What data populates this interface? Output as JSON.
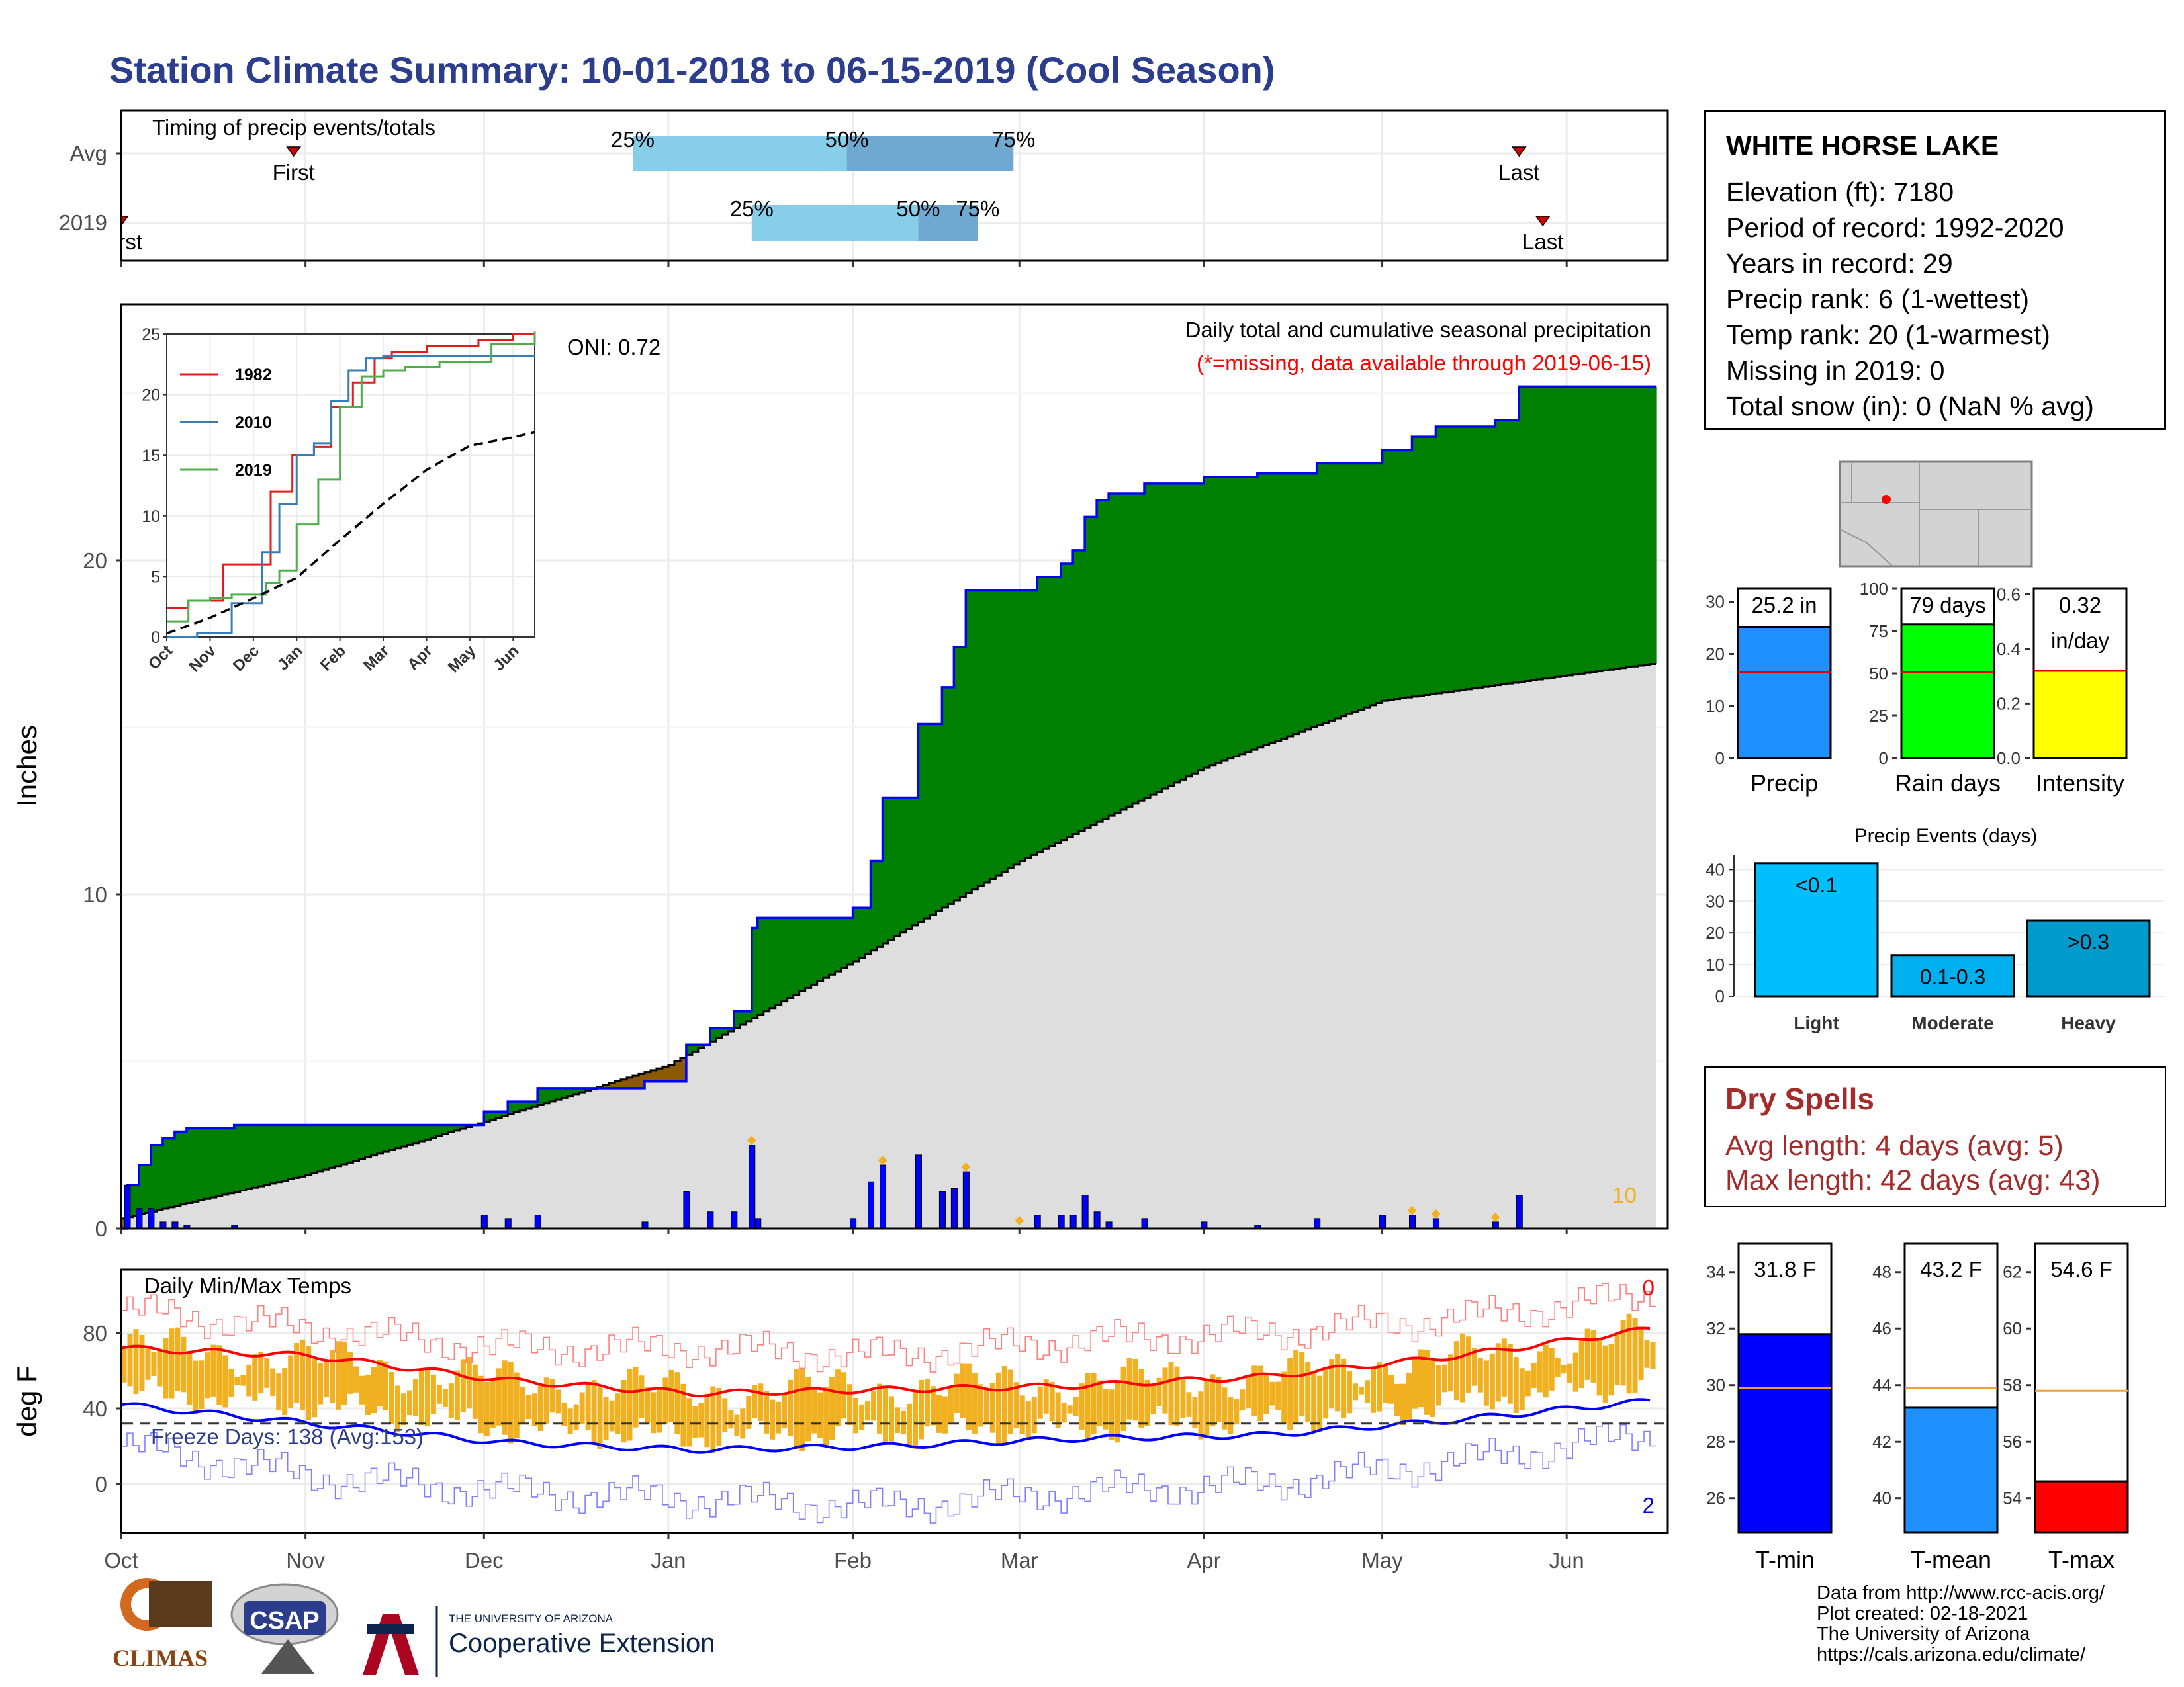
{
  "title": "Station Climate Summary: 10-01-2018 to 06-15-2019 (Cool Season)",
  "colors": {
    "title": "#2b3d8c",
    "green": "#008000",
    "brown": "#8b5a00",
    "grey": "#dedede",
    "blue": "#0000ff",
    "red": "#ff0000",
    "orange": "#f0b020",
    "light_blue": "#87ceeb",
    "steel_blue": "#6fa8d0"
  },
  "timing": {
    "title": "Timing of precip events/totals",
    "rows": [
      {
        "label": "Avg",
        "first": "First",
        "last": "Last",
        "p25": "25%",
        "p50": "50%",
        "p75": "75%",
        "first_date": "2018-10-30",
        "last_date": "2019-05-24",
        "d25": "2018-12-26",
        "d50": "2019-01-31",
        "d75": "2019-02-28"
      },
      {
        "label": "2019",
        "first": "First",
        "last": "Last",
        "p25": "25%",
        "p50": "50%",
        "p75": "75%",
        "first_date": "2018-10-01",
        "last_date": "2019-05-28",
        "d25": "2019-01-15",
        "d50": "2019-02-12",
        "d75": "2019-02-22"
      }
    ]
  },
  "main": {
    "ylabel": "Inches",
    "subtitle": "Daily total and cumulative seasonal precipitation",
    "missing_note": "(*=missing, data available through 2019-06-15)",
    "oni": "ONI: 0.72",
    "count_label": "10",
    "y_ticks": [
      "0",
      "10",
      "20"
    ]
  },
  "months": [
    "Oct",
    "Nov",
    "Dec",
    "Jan",
    "Feb",
    "Mar",
    "Apr",
    "May",
    "Jun"
  ],
  "inset": {
    "y_ticks": [
      "0",
      "5",
      "10",
      "15",
      "20",
      "25"
    ],
    "x_ticks": [
      "Oct",
      "Nov",
      "Dec",
      "Jan",
      "Feb",
      "Mar",
      "Apr",
      "May",
      "Jun"
    ],
    "legend": [
      "1982",
      "2010",
      "2019"
    ],
    "legend_colors": [
      "#e41a1c",
      "#377eb8",
      "#4daf4a"
    ]
  },
  "temps": {
    "title": "Daily Min/Max Temps",
    "ylabel": "deg F",
    "y_ticks": [
      "0",
      "40",
      "80"
    ],
    "freeze_label": "Freeze Days: 138 (Avg:153)",
    "max_count": "0",
    "min_count": "2"
  },
  "station": {
    "name": "WHITE HORSE LAKE",
    "lines": [
      "Elevation (ft): 7180",
      "Period of record: 1992-2020",
      "Years in record: 29",
      "Precip rank: 6 (1-wettest)",
      "Temp rank: 20 (1-warmest)",
      "Missing in 2019: 0",
      "Total snow (in): 0 (NaN % avg)"
    ]
  },
  "summary_bars": [
    {
      "name": "Precip",
      "label": "25.2 in",
      "value": 25.2,
      "avg": 16.5,
      "ymax": 32.5,
      "ticks": [
        "0",
        "10",
        "20",
        "30"
      ],
      "tick_vals": [
        0,
        10,
        20,
        30
      ],
      "color": "#1e90ff"
    },
    {
      "name": "Rain days",
      "label": "79 days",
      "value": 79,
      "avg": 51,
      "ymax": 100,
      "ticks": [
        "0",
        "25",
        "50",
        "75",
        "100"
      ],
      "tick_vals": [
        0,
        25,
        50,
        75,
        100
      ],
      "color": "#00ff00"
    },
    {
      "name": "Intensity",
      "label": "0.32",
      "label2": "in/day",
      "value": 0.32,
      "avg": 0.32,
      "ymax": 0.62,
      "ticks": [
        "0.0",
        "0.2",
        "0.4",
        "0.6"
      ],
      "tick_vals": [
        0,
        0.2,
        0.4,
        0.6
      ],
      "color": "#ffff00"
    }
  ],
  "events": {
    "title": "Precip Events (days)",
    "ticks": [
      "0",
      "10",
      "20",
      "30",
      "40"
    ],
    "bars": [
      {
        "name": "Light",
        "label": "<0.1",
        "value": 42,
        "color": "#00bfff"
      },
      {
        "name": "Moderate",
        "label": "0.1-0.3",
        "value": 13,
        "color": "#00b0ee"
      },
      {
        "name": "Heavy",
        "label": ">0.3",
        "value": 24,
        "color": "#009acd"
      }
    ]
  },
  "dry_spells": {
    "title": "Dry Spells",
    "avg": "Avg length: 4 days (avg: 5)",
    "max": "Max length: 42 days (avg: 43)"
  },
  "temp_bars": [
    {
      "name": "T-min",
      "label": "31.8 F",
      "value": 31.8,
      "avg": 29.9,
      "ymin": 24.8,
      "ymax": 35.0,
      "ticks": [
        "26",
        "28",
        "30",
        "32",
        "34"
      ],
      "tick_vals": [
        26,
        28,
        30,
        32,
        34
      ],
      "color": "#0000ff"
    },
    {
      "name": "T-mean",
      "label": "43.2 F",
      "value": 43.2,
      "avg": 43.9,
      "ymin": 38.8,
      "ymax": 49.0,
      "ticks": [
        "40",
        "42",
        "44",
        "46",
        "48"
      ],
      "tick_vals": [
        40,
        42,
        44,
        46,
        48
      ],
      "color": "#1e90ff"
    },
    {
      "name": "T-max",
      "label": "54.6 F",
      "value": 54.6,
      "avg": 57.8,
      "ymin": 52.8,
      "ymax": 63.0,
      "ticks": [
        "54",
        "56",
        "58",
        "60",
        "62"
      ],
      "tick_vals": [
        54,
        56,
        58,
        60,
        62
      ],
      "color": "#ff0000"
    }
  ],
  "footer": [
    "Data from http://www.rcc-acis.org/",
    "Plot created: 02-18-2021",
    "The University of Arizona",
    "https://cals.arizona.edu/climate/"
  ],
  "logos": {
    "climas": "CLIMAS",
    "csap": "CSAP",
    "ua_small": "THE UNIVERSITY OF ARIZONA",
    "ua_big": "Cooperative Extension"
  },
  "chart_data": [
    {
      "type": "area",
      "title": "Daily total and cumulative seasonal precipitation",
      "ylabel": "Inches",
      "x_range": [
        "2018-10-01",
        "2019-06-15"
      ],
      "ylim": [
        0,
        25.5
      ],
      "series": [
        {
          "name": "2019",
          "x": [
            "2018-10-01",
            "2018-10-02",
            "2018-10-04",
            "2018-10-06",
            "2018-10-08",
            "2018-10-10",
            "2018-10-12",
            "2018-10-20",
            "2018-11-28",
            "2018-12-01",
            "2018-12-05",
            "2018-12-10",
            "2018-12-28",
            "2019-01-04",
            "2019-01-08",
            "2019-01-12",
            "2019-01-15",
            "2019-01-16",
            "2019-01-20",
            "2019-02-01",
            "2019-02-04",
            "2019-02-06",
            "2019-02-12",
            "2019-02-16",
            "2019-02-18",
            "2019-02-20",
            "2019-02-22",
            "2019-03-04",
            "2019-03-08",
            "2019-03-10",
            "2019-03-12",
            "2019-03-14",
            "2019-03-16",
            "2019-03-22",
            "2019-04-01",
            "2019-04-10",
            "2019-04-20",
            "2019-05-01",
            "2019-05-06",
            "2019-05-10",
            "2019-05-20",
            "2019-05-24",
            "2019-06-15"
          ],
          "y": [
            0,
            1.3,
            1.9,
            2.5,
            2.7,
            2.9,
            3.0,
            3.1,
            3.1,
            3.5,
            3.8,
            4.2,
            4.4,
            5.5,
            6.0,
            6.5,
            9.0,
            9.3,
            9.3,
            9.6,
            11.0,
            12.9,
            15.1,
            16.2,
            17.4,
            19.1,
            19.1,
            19.5,
            19.9,
            20.3,
            21.3,
            21.8,
            22.0,
            22.3,
            22.5,
            22.6,
            22.9,
            23.3,
            23.7,
            24.0,
            24.2,
            25.2,
            25.2
          ]
        },
        {
          "name": "Avg",
          "x": [
            "2018-10-01",
            "2018-11-01",
            "2018-12-01",
            "2019-01-01",
            "2019-02-01",
            "2019-03-01",
            "2019-04-01",
            "2019-05-01",
            "2019-06-15"
          ],
          "y": [
            0.3,
            1.6,
            3.2,
            4.9,
            8.0,
            11.0,
            13.8,
            15.8,
            16.9
          ]
        }
      ],
      "daily_marks_with_flags": [
        "2019-01-15",
        "2019-02-06",
        "2019-02-20",
        "2019-03-01",
        "2019-05-06",
        "2019-05-10",
        "2019-05-20"
      ]
    },
    {
      "type": "line",
      "title": "",
      "ylim": [
        0,
        25
      ],
      "x_ticks": [
        "Oct",
        "Nov",
        "Dec",
        "Jan",
        "Feb",
        "Mar",
        "Apr",
        "May",
        "Jun"
      ],
      "series": [
        {
          "name": "1982",
          "x": [
            0,
            0.5,
            1.3,
            2.0,
            2.4,
            2.9,
            3.4,
            3.8,
            4.3,
            4.8,
            5.2,
            6.0,
            7.2,
            8.0,
            8.5
          ],
          "y": [
            2.4,
            3.0,
            6.0,
            6.0,
            12.0,
            15.0,
            15.7,
            19.0,
            21.0,
            23.0,
            23.5,
            24.0,
            24.5,
            25.0,
            25.0
          ]
        },
        {
          "name": "2010",
          "x": [
            0,
            0.7,
            1.0,
            1.5,
            2.2,
            2.6,
            3.0,
            3.4,
            3.8,
            4.2,
            4.6,
            5.0,
            5.5,
            6.5,
            8.5
          ],
          "y": [
            0,
            0.3,
            0.3,
            2.8,
            7.0,
            11.0,
            15.0,
            16.0,
            19.5,
            22.0,
            23.0,
            23.2,
            23.2,
            23.2,
            23.2
          ]
        },
        {
          "name": "2019",
          "x": [
            0,
            0.5,
            1.0,
            1.5,
            2.3,
            2.6,
            3.0,
            3.5,
            4.0,
            4.5,
            5.0,
            5.5,
            6.3,
            7.5,
            8.5
          ],
          "y": [
            1.3,
            3.0,
            3.2,
            3.5,
            4.5,
            5.5,
            9.3,
            13.0,
            19.0,
            21.5,
            22.0,
            22.3,
            22.7,
            24.2,
            25.2
          ]
        },
        {
          "name": "Avg",
          "x": [
            0,
            1,
            2,
            3,
            4,
            5,
            6,
            7,
            8,
            8.5
          ],
          "y": [
            0.3,
            1.6,
            3.2,
            4.9,
            8.0,
            11.0,
            13.8,
            15.8,
            16.5,
            16.9
          ]
        }
      ]
    },
    {
      "type": "bar",
      "title": "Daily Min/Max Temps",
      "ylabel": "deg F",
      "ylim": [
        -25,
        115
      ],
      "series": [
        {
          "name": "Normal max",
          "x": [
            "Oct",
            "Nov",
            "Dec",
            "Jan",
            "Feb",
            "Mar",
            "Apr",
            "May",
            "Jun"
          ],
          "y": [
            72,
            68,
            55,
            48,
            50,
            52,
            57,
            68,
            82
          ]
        },
        {
          "name": "Normal min",
          "x": [
            "Oct",
            "Nov",
            "Dec",
            "Jan",
            "Feb",
            "Mar",
            "Apr",
            "May",
            "Jun"
          ],
          "y": [
            42,
            32,
            22,
            18,
            20,
            24,
            26,
            34,
            44
          ]
        },
        {
          "name": "Record max",
          "x": [
            "Oct",
            "Nov",
            "Dec",
            "Jan",
            "Feb",
            "Mar",
            "Apr",
            "May",
            "Jun"
          ],
          "y": [
            92,
            82,
            72,
            72,
            68,
            76,
            80,
            88,
            100
          ]
        },
        {
          "name": "Record min",
          "x": [
            "Oct",
            "Nov",
            "Dec",
            "Jan",
            "Feb",
            "Mar",
            "Apr",
            "May",
            "Jun"
          ],
          "y": [
            20,
            4,
            -4,
            -8,
            -12,
            -4,
            0,
            12,
            26
          ]
        }
      ],
      "freeze_line": 32
    },
    {
      "type": "bar",
      "title": "Precip Events (days)",
      "categories": [
        "Light",
        "Moderate",
        "Heavy"
      ],
      "values": [
        42,
        13,
        24
      ],
      "ylim": [
        0,
        43
      ]
    }
  ]
}
